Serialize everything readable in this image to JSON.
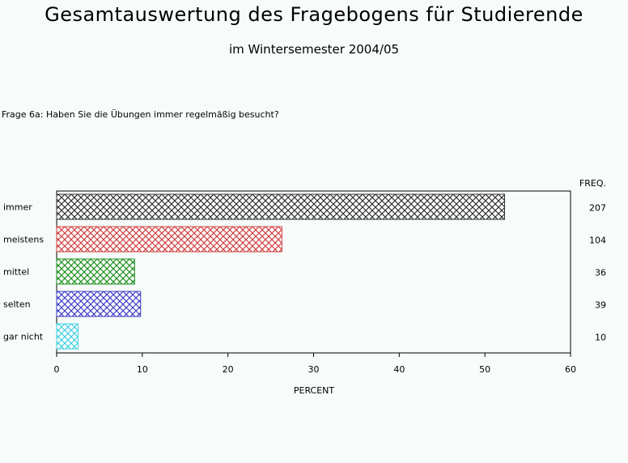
{
  "header": {
    "title": "Gesamtauswertung des Fragebogens für Studierende",
    "subtitle": "im Wintersemester 2004/05"
  },
  "question": "Frage 6a: Haben Sie die Übungen immer regelmäßig besucht?",
  "chart_data": {
    "type": "bar",
    "orientation": "horizontal",
    "categories": [
      "immer",
      "meistens",
      "mittel",
      "selten",
      "gar nicht"
    ],
    "values": [
      52.3,
      26.3,
      9.1,
      9.8,
      2.5
    ],
    "freq": [
      207,
      104,
      36,
      39,
      10
    ],
    "freq_label": "FREQ.",
    "colors": [
      "#333333",
      "#d04040",
      "#209020",
      "#4040c8",
      "#40d0e0"
    ],
    "xlabel": "PERCENT",
    "xlim": [
      0,
      60
    ],
    "xticks": [
      0,
      10,
      20,
      30,
      40,
      50,
      60
    ],
    "grid": false,
    "bar_pattern": "crosshatch"
  }
}
